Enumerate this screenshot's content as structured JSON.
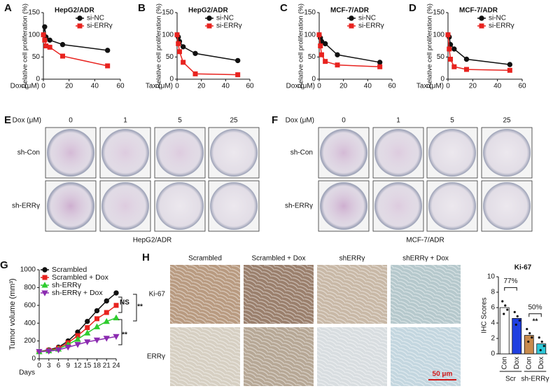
{
  "chart_data": [
    {
      "type": "line",
      "panel": "A",
      "title": "HepG2/ADR",
      "x_label": "Dox (μM)",
      "y_label": "Relative cell proliferation (%)",
      "x": [
        0,
        1,
        2,
        5,
        15,
        50
      ],
      "xlim": [
        0,
        60
      ],
      "xticks": [
        0,
        20,
        40,
        60
      ],
      "ylim": [
        0,
        150
      ],
      "yticks": [
        0,
        50,
        100,
        150
      ],
      "legend": "upper right",
      "series": [
        {
          "name": "si-NC",
          "color": "#111111",
          "marker": "circle",
          "values": [
            100,
            118,
            95,
            88,
            78,
            65
          ]
        },
        {
          "name": "si-ERRγ",
          "color": "#e8231f",
          "marker": "square",
          "values": [
            100,
            88,
            75,
            72,
            52,
            30
          ]
        }
      ]
    },
    {
      "type": "line",
      "panel": "B",
      "title": "HepG2/ADR",
      "x_label": "Tax (μM)",
      "y_label": "Relative cell proliferation (%)",
      "x": [
        0,
        1,
        2,
        5,
        15,
        50
      ],
      "xlim": [
        0,
        60
      ],
      "xticks": [
        0,
        20,
        40,
        60
      ],
      "ylim": [
        0,
        150
      ],
      "yticks": [
        0,
        50,
        100,
        150
      ],
      "legend": "upper right",
      "series": [
        {
          "name": "si-NC",
          "color": "#111111",
          "marker": "circle",
          "values": [
            100,
            95,
            85,
            73,
            58,
            42
          ]
        },
        {
          "name": "si-ERRγ",
          "color": "#e8231f",
          "marker": "square",
          "values": [
            100,
            80,
            62,
            38,
            12,
            10
          ]
        }
      ]
    },
    {
      "type": "line",
      "panel": "C",
      "title": "MCF-7/ADR",
      "x_label": "Dox (μM)",
      "y_label": "Relative cell proliferation (%)",
      "x": [
        0,
        1,
        2,
        5,
        15,
        50
      ],
      "xlim": [
        0,
        60
      ],
      "xticks": [
        0,
        20,
        40,
        60
      ],
      "ylim": [
        0,
        150
      ],
      "yticks": [
        0,
        50,
        100,
        150
      ],
      "legend": "upper right",
      "series": [
        {
          "name": "si-NC",
          "color": "#111111",
          "marker": "circle",
          "values": [
            100,
            93,
            85,
            80,
            55,
            38
          ]
        },
        {
          "name": "si-ERRγ",
          "color": "#e8231f",
          "marker": "square",
          "values": [
            100,
            75,
            55,
            40,
            32,
            28
          ]
        }
      ]
    },
    {
      "type": "line",
      "panel": "D",
      "title": "MCF-7/ADR",
      "x_label": "Tax (μM)",
      "y_label": "Relative cell proliferation (%)",
      "x": [
        0,
        1,
        2,
        5,
        15,
        50
      ],
      "xlim": [
        0,
        60
      ],
      "xticks": [
        0,
        20,
        40,
        60
      ],
      "ylim": [
        0,
        150
      ],
      "yticks": [
        0,
        50,
        100,
        150
      ],
      "legend": "upper right",
      "series": [
        {
          "name": "si-NC",
          "color": "#111111",
          "marker": "circle",
          "values": [
            100,
            95,
            78,
            68,
            45,
            33
          ]
        },
        {
          "name": "si-ERRγ",
          "color": "#e8231f",
          "marker": "square",
          "values": [
            100,
            68,
            45,
            28,
            22,
            20
          ]
        }
      ]
    },
    {
      "type": "line",
      "panel": "G",
      "x_label": "Days",
      "y_label": "Tumor volume (mm³)",
      "x": [
        0,
        3,
        6,
        9,
        12,
        15,
        18,
        21,
        24
      ],
      "xlim": [
        0,
        24
      ],
      "xticks": [
        0,
        3,
        6,
        9,
        12,
        15,
        18,
        21,
        24
      ],
      "ylim": [
        0,
        1000
      ],
      "yticks": [
        0,
        200,
        400,
        600,
        800,
        1000
      ],
      "legend": "upper left",
      "annotations": [
        "NS",
        "**",
        "**"
      ],
      "series": [
        {
          "name": "Scrambled",
          "color": "#111111",
          "marker": "circle",
          "values": [
            80,
            100,
            130,
            200,
            300,
            420,
            540,
            650,
            740
          ]
        },
        {
          "name": "Scrambled + Dox",
          "color": "#e8231f",
          "marker": "square",
          "values": [
            80,
            95,
            120,
            180,
            260,
            350,
            450,
            520,
            600
          ]
        },
        {
          "name": "sh-ERRγ",
          "color": "#2fcc2f",
          "marker": "triangle",
          "values": [
            80,
            90,
            110,
            160,
            220,
            290,
            360,
            420,
            460
          ]
        },
        {
          "name": "sh-ERRγ + Dox",
          "color": "#8b2bb0",
          "marker": "triangle-down",
          "values": [
            80,
            85,
            100,
            130,
            160,
            190,
            210,
            230,
            250
          ]
        }
      ]
    },
    {
      "type": "bar",
      "title": "Ki-67",
      "y_label": "IHC Scores",
      "categories": [
        "Con",
        "Dox",
        "Con",
        "Dox"
      ],
      "groups": [
        "Scr",
        "sh-ERRγ"
      ],
      "values": [
        6,
        4.6,
        2.4,
        1.3
      ],
      "colors": [
        "#ffffff",
        "#1f3fe0",
        "#c88a4c",
        "#2ec8d8"
      ],
      "ylim": [
        0,
        10
      ],
      "yticks": [
        0,
        2,
        4,
        6,
        8,
        10
      ],
      "annotations": [
        "77%",
        "50%",
        "**"
      ]
    }
  ],
  "colony_assays": [
    {
      "panel": "E",
      "dose_label": "Dox (μM)",
      "doses": [
        "0",
        "1",
        "5",
        "25"
      ],
      "rows": [
        "sh-Con",
        "sh-ERRγ"
      ],
      "cell_line": "HepG2/ADR"
    },
    {
      "panel": "F",
      "dose_label": "Dox (μM)",
      "doses": [
        "0",
        "1",
        "5",
        "25"
      ],
      "rows": [
        "sh-Con",
        "sh-ERRγ"
      ],
      "cell_line": "MCF-7/ADR"
    }
  ],
  "ihc": {
    "panel": "H",
    "columns": [
      "Scrambled",
      "Scrambled + Dox",
      "shERRγ",
      "shERRγ + Dox"
    ],
    "rows": [
      "Ki-67",
      "ERRγ"
    ],
    "scale_bar": "50 μm"
  }
}
